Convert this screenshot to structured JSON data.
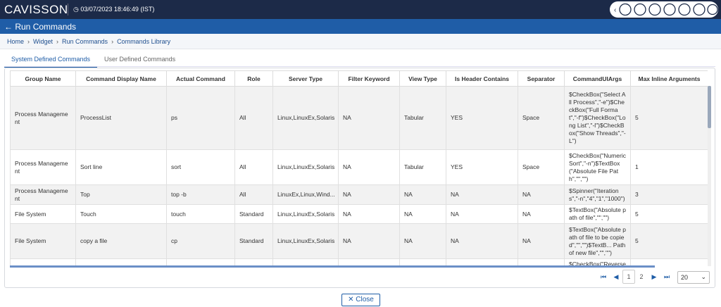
{
  "header": {
    "logo": "CAVISSON",
    "datetime": "03/07/2023 18:46:49 (IST)",
    "page_title": "Run Commands"
  },
  "breadcrumb": [
    "Home",
    "Widget",
    "Run Commands",
    "Commands Library"
  ],
  "tabs": [
    "System Defined Commands",
    "User Defined Commands"
  ],
  "table": {
    "columns": [
      "Group Name",
      "Command Display Name",
      "Actual Command",
      "Role",
      "Server Type",
      "Filter Keyword",
      "View Type",
      "Is Header Contains",
      "Separator",
      "CommandUIArgs",
      "Max Inline Arguments"
    ],
    "rows": [
      [
        "Process Management",
        "ProcessList",
        "ps",
        "All",
        "Linux,LinuxEx,Solaris",
        "NA",
        "Tabular",
        "YES",
        "Space",
        "$CheckBox(\"Select All Process\",\"-e\")$CheckBox(\"Full Format\",\"-f\")$CheckBox(\"Long List\",\"-l\")$CheckBox(\"Show Threads\",\"-L\")",
        "5"
      ],
      [
        "Process Management",
        "Sort line",
        "sort",
        "All",
        "Linux,LinuxEx,Solaris",
        "NA",
        "Tabular",
        "YES",
        "Space",
        "$CheckBox(\"Numeric Sort\",\"-n\")$TextBox(\"Absolute File Path\",\"\",\"\")",
        "1"
      ],
      [
        "Process Management",
        "Top",
        "top -b",
        "All",
        "LinuxEx,Linux,Wind...",
        "NA",
        "NA",
        "NA",
        "NA",
        "$Spinner(\"Iterations\",\"-n\",\"4\",\"1\",\"1000\")",
        "3"
      ],
      [
        "File System",
        "Touch",
        "touch",
        "Standard",
        "Linux,LinuxEx,Solaris",
        "NA",
        "NA",
        "NA",
        "NA",
        "$TextBox(\"Absolute path of file\",\"\",\"\")",
        "5"
      ],
      [
        "File System",
        "copy a file",
        "cp",
        "Standard",
        "Linux,LinuxEx,Solaris",
        "NA",
        "NA",
        "NA",
        "NA",
        "$TextBox(\"Absolute path of file to be copied\",\"\",\"\")$TextB... Path of new file\",\"\",\"\")",
        "5"
      ],
      [
        null,
        null,
        null,
        null,
        null,
        null,
        null,
        null,
        null,
        "$CheckBox(\"Reverse",
        null
      ]
    ]
  },
  "pagination": {
    "pages": [
      "1",
      "2"
    ],
    "page_size": "20"
  },
  "close_button": "Close"
}
